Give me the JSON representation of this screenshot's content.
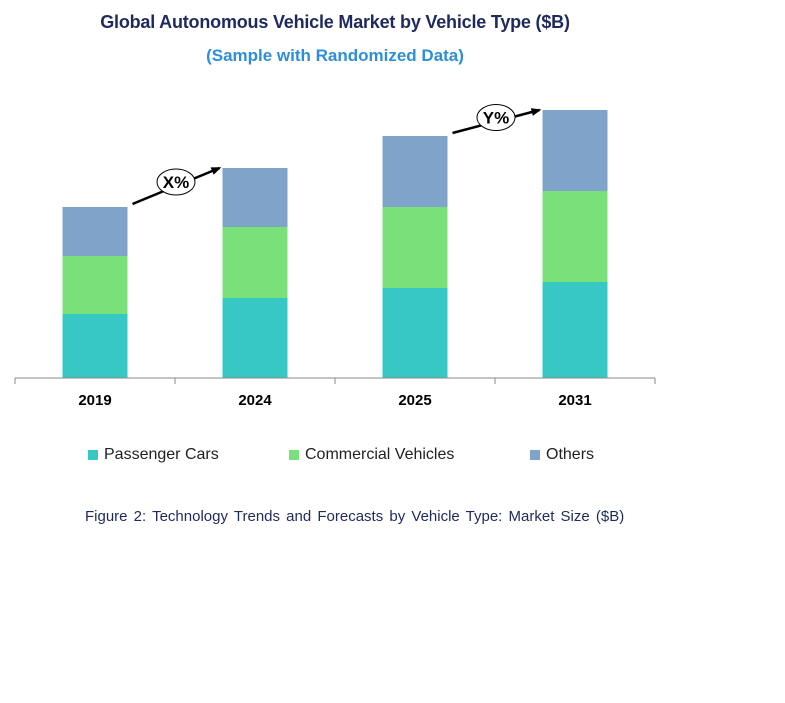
{
  "chart_data": {
    "type": "bar",
    "stacked": true,
    "title": "Global Autonomous Vehicle Market by Vehicle Type ($B)",
    "subtitle": "(Sample with Randomized Data)",
    "categories": [
      "2019",
      "2024",
      "2025",
      "2031"
    ],
    "series": [
      {
        "name": "Passenger Cars",
        "color": "#38c8c4",
        "values": [
          64,
          80,
          90,
          96
        ]
      },
      {
        "name": "Commercial Vehicles",
        "color": "#7ae07a",
        "values": [
          58,
          71,
          81,
          91
        ]
      },
      {
        "name": "Others",
        "color": "#7fa3c9",
        "values": [
          49,
          59,
          71,
          81
        ]
      }
    ],
    "annotations": [
      {
        "label": "X%",
        "from": "2019",
        "to": "2024"
      },
      {
        "label": "Y%",
        "from": "2025",
        "to": "2031"
      }
    ],
    "legend_position": "bottom",
    "grid": false,
    "ylim": [
      0,
      270
    ]
  },
  "caption": "Figure 2: Technology  Trends  and Forecasts by Vehicle Type:  Market Size ($B)"
}
